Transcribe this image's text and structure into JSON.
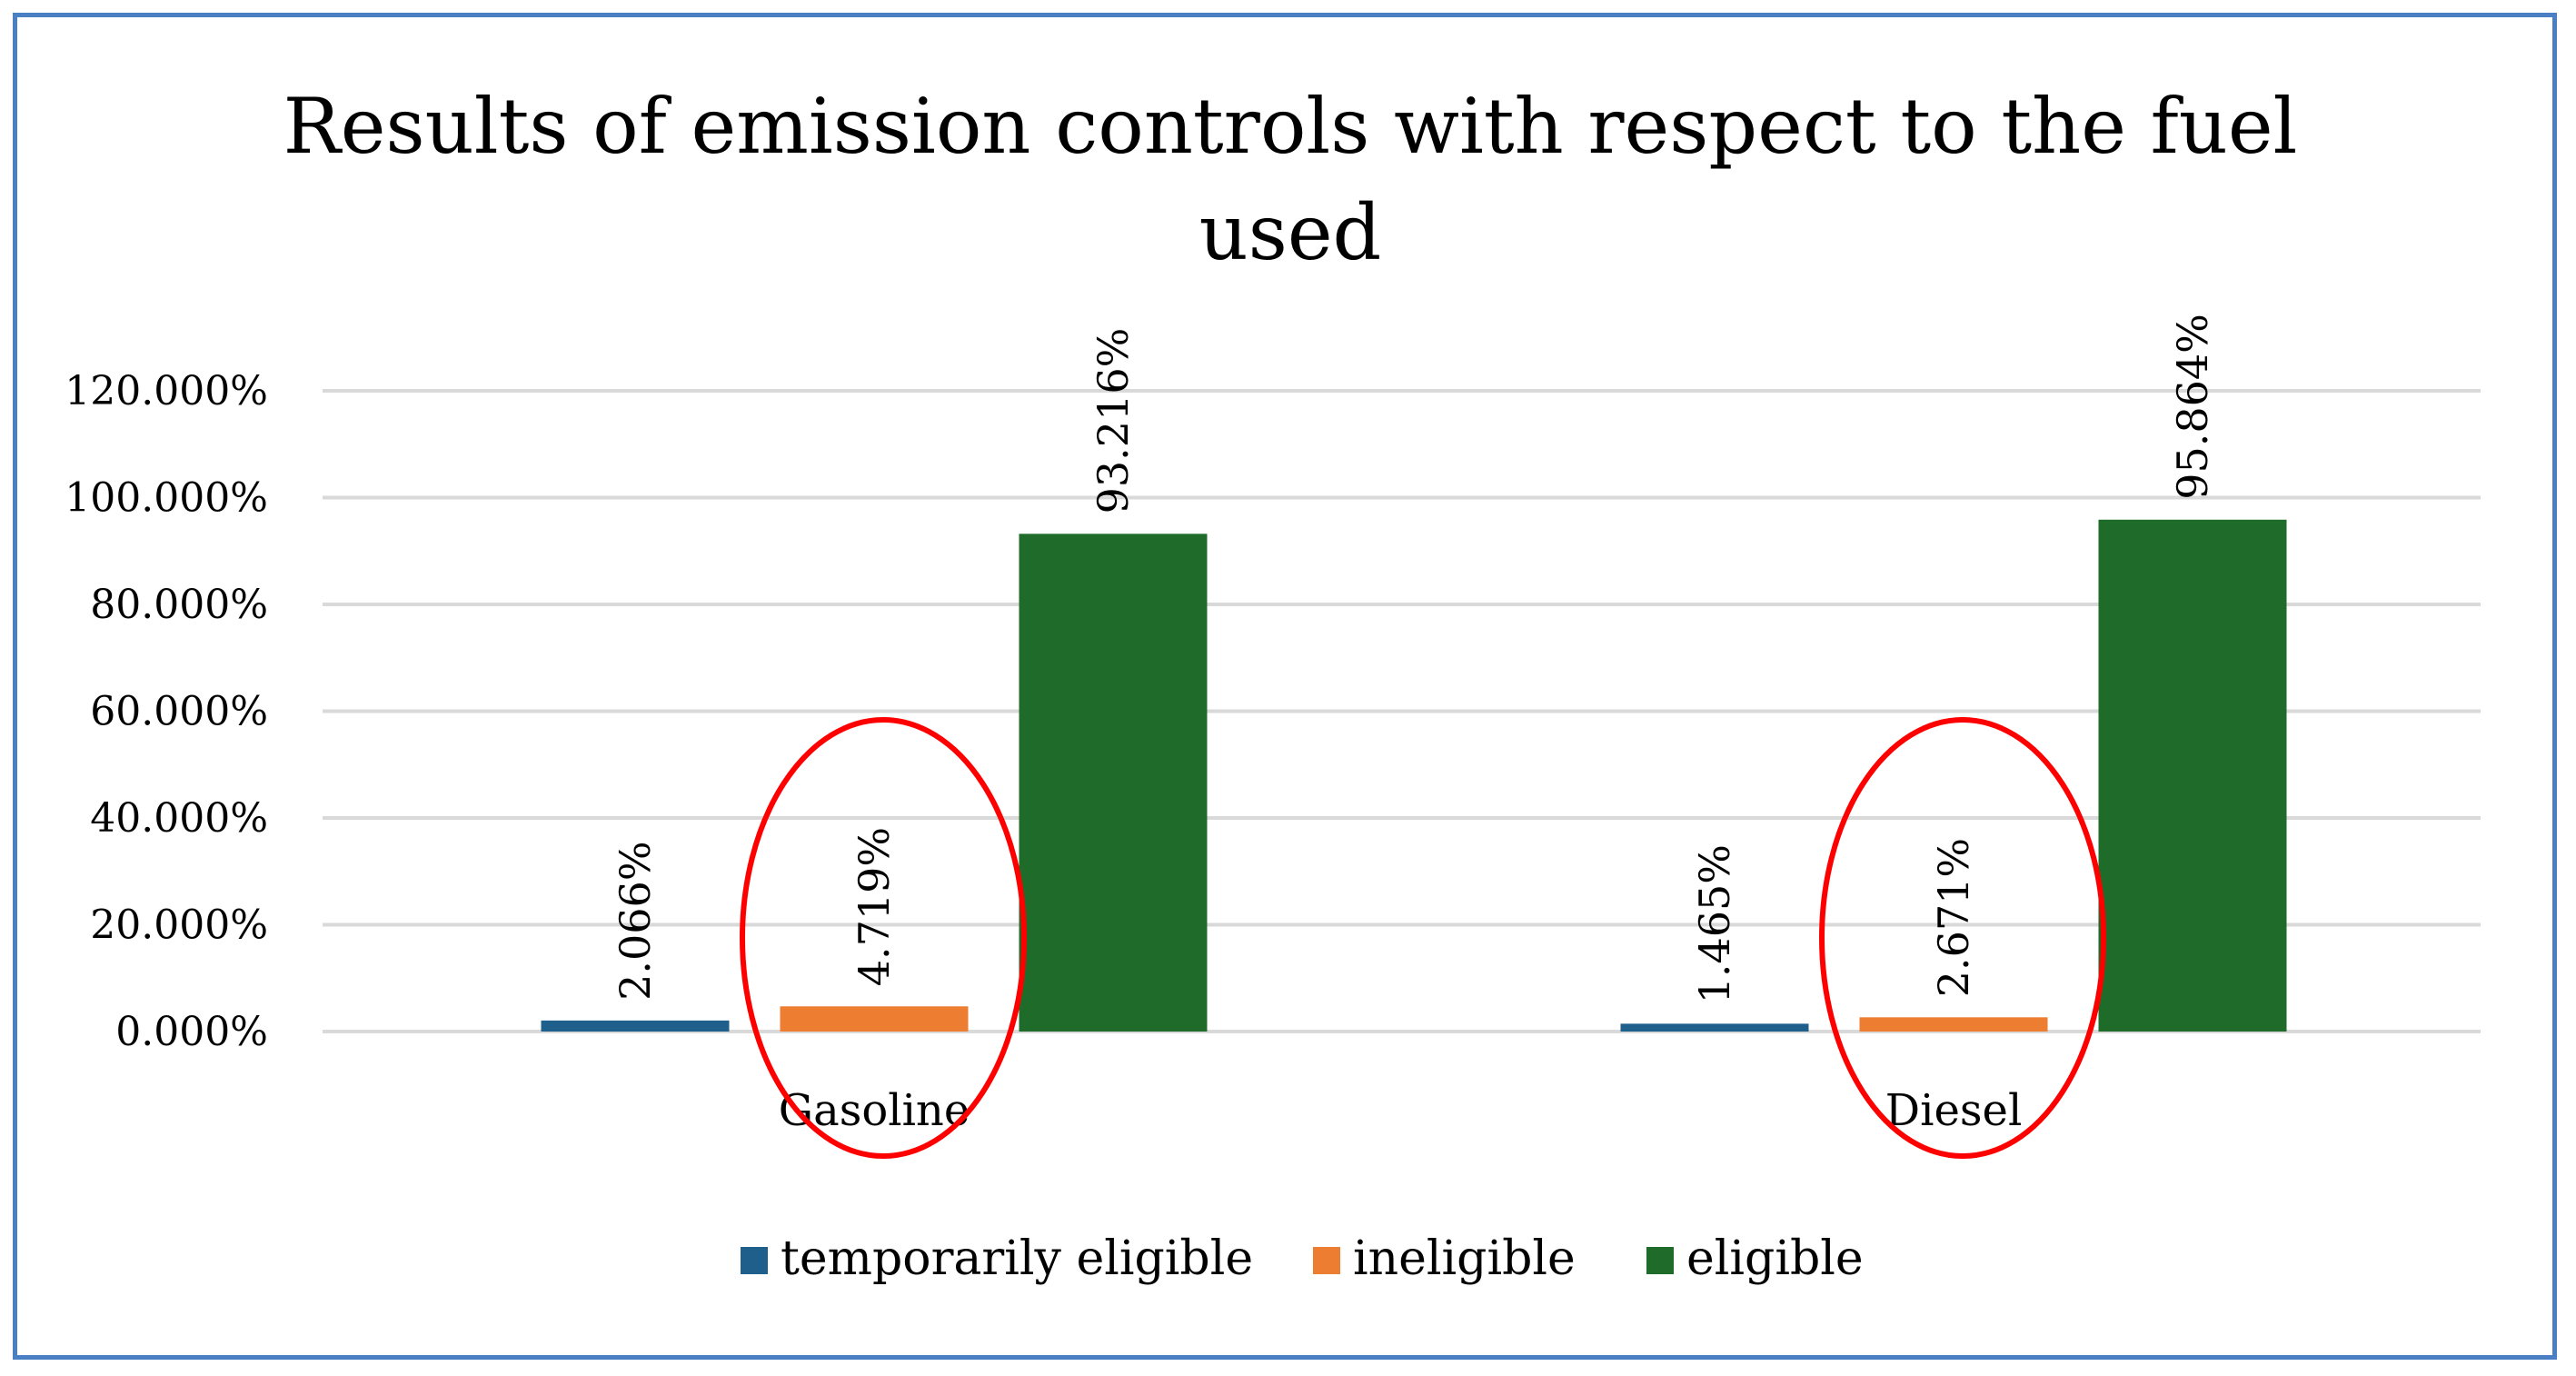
{
  "chart_data": {
    "type": "bar",
    "title": "Results of emission controls with respect to the fuel used",
    "title_lines": [
      "Results of emission controls with respect to the fuel",
      "used"
    ],
    "categories": [
      "Gasoline",
      "Diesel"
    ],
    "series": [
      {
        "name": "temporarily eligible",
        "values": [
          2.066,
          1.465
        ],
        "labels": [
          "2.066%",
          "1.465%"
        ],
        "color": "#1f5f8b"
      },
      {
        "name": "ineligible",
        "values": [
          4.719,
          2.671
        ],
        "labels": [
          "4.719%",
          "2.671%"
        ],
        "color": "#ed7d31"
      },
      {
        "name": "eligible",
        "values": [
          93.216,
          95.864
        ],
        "labels": [
          "93.216%",
          "95.864%"
        ],
        "color": "#1e6b2a"
      }
    ],
    "ylim": [
      0,
      120
    ],
    "yticks": [
      0,
      20,
      40,
      60,
      80,
      100,
      120
    ],
    "ytick_labels": [
      "0.000%",
      "20.000%",
      "40.000%",
      "60.000%",
      "80.000%",
      "100.000%",
      "120.000%"
    ],
    "grid": true,
    "legend_position": "bottom",
    "annotations": [
      {
        "type": "ellipse",
        "around": "ineligible",
        "category": "Gasoline",
        "color": "#ff0000"
      },
      {
        "type": "ellipse",
        "around": "ineligible",
        "category": "Diesel",
        "color": "#ff0000"
      }
    ],
    "gridline_color": "#d9d9d9",
    "frame_color": "#4a7fc4"
  }
}
